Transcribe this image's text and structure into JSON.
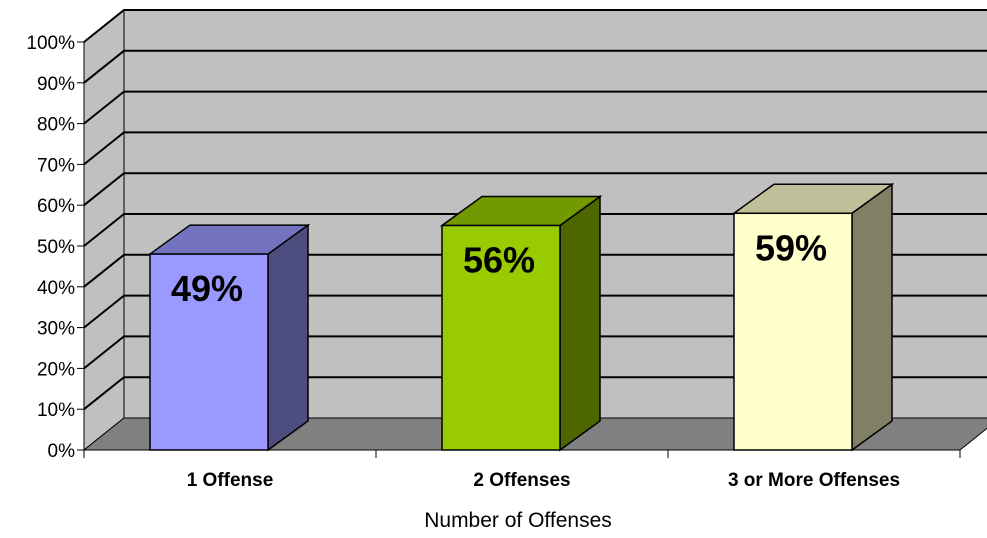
{
  "chart_data": {
    "type": "bar",
    "title": "",
    "xlabel": "Number of Offenses",
    "ylabel": "",
    "categories": [
      "1 Offense",
      "2 Offenses",
      "3 or More Offenses"
    ],
    "values": [
      49,
      56,
      59
    ],
    "data_labels": [
      "49%",
      "56%",
      "59%"
    ],
    "ylim": [
      0,
      100
    ],
    "y_ticks": [
      0,
      10,
      20,
      30,
      40,
      50,
      60,
      70,
      80,
      90,
      100
    ],
    "y_tick_labels": [
      "0%",
      "10%",
      "20%",
      "30%",
      "40%",
      "50%",
      "60%",
      "70%",
      "80%",
      "90%",
      "100%"
    ],
    "grid": true,
    "legend": "none",
    "style": "3d-column",
    "colors": {
      "wall": "#c0c0c0",
      "floor": "#808080",
      "gridline": "#000000",
      "bars": [
        {
          "front": "#9999ff",
          "side": "#4d4d80",
          "top": "#7373bf"
        },
        {
          "front": "#99cc00",
          "side": "#4d6600",
          "top": "#739900"
        },
        {
          "front": "#ffffcc",
          "side": "#808066",
          "top": "#bfbf99"
        }
      ]
    }
  }
}
